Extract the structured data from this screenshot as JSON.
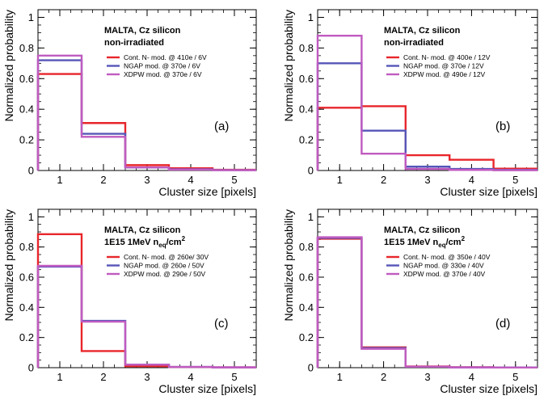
{
  "chart_data": [
    {
      "type": "step",
      "panel_label": "(a)",
      "title_line1": "MALTA, Cz silicon",
      "title_line2": "non-irradiated",
      "xlabel": "Cluster size [pixels]",
      "ylabel": "Normalized probability",
      "xlim": [
        0.5,
        5.5
      ],
      "ylim": [
        0,
        1.05
      ],
      "xticks": [
        "1",
        "2",
        "3",
        "4",
        "5"
      ],
      "yticks": [
        "0",
        "0.2",
        "0.4",
        "0.6",
        "0.8",
        "1"
      ],
      "series": [
        {
          "name": "Cont. N- mod. @ 410e / 6V",
          "color": "#e8262b",
          "values": [
            0.63,
            0.31,
            0.035,
            0.015,
            0.005
          ]
        },
        {
          "name": "NGAP mod. @ 370e / 6V",
          "color": "#5656b8",
          "values": [
            0.72,
            0.24,
            0.02,
            0.008,
            0.003
          ]
        },
        {
          "name": "XDPW mod. @ 370e / 6V",
          "color": "#c05bc0",
          "values": [
            0.75,
            0.22,
            0.02,
            0.006,
            0.002
          ]
        }
      ]
    },
    {
      "type": "step",
      "panel_label": "(b)",
      "title_line1": "MALTA, Cz silicon",
      "title_line2": "non-irradiated",
      "xlabel": "Cluster size [pixels]",
      "ylabel": "Normalized probability",
      "xlim": [
        0.5,
        5.5
      ],
      "ylim": [
        0,
        1.05
      ],
      "xticks": [
        "1",
        "2",
        "3",
        "4",
        "5"
      ],
      "yticks": [
        "0",
        "0.2",
        "0.4",
        "0.6",
        "0.8",
        "1"
      ],
      "series": [
        {
          "name": "Cont. N- mod. @ 400e / 12V",
          "color": "#e8262b",
          "values": [
            0.41,
            0.42,
            0.1,
            0.07,
            0.012
          ]
        },
        {
          "name": "NGAP mod. @ 370e / 12V",
          "color": "#5656b8",
          "values": [
            0.7,
            0.26,
            0.025,
            0.01,
            0.004
          ]
        },
        {
          "name": "XDPW mod. @ 490e / 12V",
          "color": "#c05bc0",
          "values": [
            0.88,
            0.11,
            0.01,
            0.004,
            0.002
          ]
        }
      ]
    },
    {
      "type": "step",
      "panel_label": "(c)",
      "title_line1": "MALTA, Cz silicon",
      "title_line2": "1E15 1MeV n",
      "title_sub": "eq",
      "title_tail": "/cm",
      "title_sup": "2",
      "xlabel": "Cluster size [pixels]",
      "ylabel": "Normalized probability",
      "xlim": [
        0.5,
        5.5
      ],
      "ylim": [
        0,
        1.05
      ],
      "xticks": [
        "1",
        "2",
        "3",
        "4",
        "5"
      ],
      "yticks": [
        "0",
        "0.2",
        "0.4",
        "0.6",
        "0.8",
        "1"
      ],
      "series": [
        {
          "name": "Cont. N- mod. @ 260e/ 30V",
          "color": "#e8262b",
          "values": [
            0.885,
            0.11,
            0.01,
            0.004,
            0.002
          ]
        },
        {
          "name": "NGAP mod. @ 260e / 50V",
          "color": "#5656b8",
          "values": [
            0.67,
            0.31,
            0.02,
            0.005,
            0.002
          ]
        },
        {
          "name": "XDPW mod. @ 290e / 50V",
          "color": "#c05bc0",
          "values": [
            0.675,
            0.305,
            0.02,
            0.005,
            0.002
          ]
        }
      ]
    },
    {
      "type": "step",
      "panel_label": "(d)",
      "title_line1": "MALTA, Cz silicon",
      "title_line2": "1E15 1MeV n",
      "title_sub": "eq",
      "title_tail": "/cm",
      "title_sup": "2",
      "xlabel": "Cluster size [pixels]",
      "ylabel": "Normalized probability",
      "xlim": [
        0.5,
        5.5
      ],
      "ylim": [
        0,
        1.05
      ],
      "xticks": [
        "1",
        "2",
        "3",
        "4",
        "5"
      ],
      "yticks": [
        "0",
        "0.2",
        "0.4",
        "0.6",
        "0.8",
        "1"
      ],
      "series": [
        {
          "name": "Cont. N- mod. @ 350e / 40V",
          "color": "#e8262b",
          "values": [
            0.855,
            0.135,
            0.008,
            0.003,
            0.001
          ]
        },
        {
          "name": "NGAP mod. @ 330e / 40V",
          "color": "#5656b8",
          "values": [
            0.86,
            0.13,
            0.007,
            0.002,
            0.001
          ]
        },
        {
          "name": "XDPW mod. @ 370e / 40V",
          "color": "#c05bc0",
          "values": [
            0.865,
            0.125,
            0.007,
            0.002,
            0.001
          ]
        }
      ]
    }
  ]
}
